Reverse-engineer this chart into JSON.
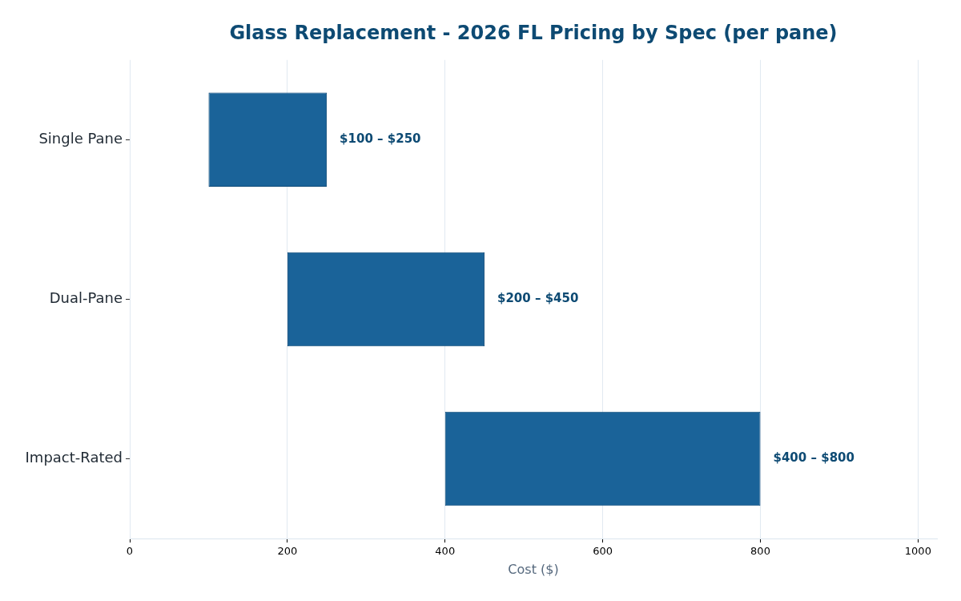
{
  "chart_data": {
    "type": "bar",
    "orientation": "horizontal",
    "title": "Glass Replacement - 2026 FL Pricing by Spec (per pane)",
    "xlabel": "Cost ($)",
    "categories": [
      "Single Pane",
      "Dual-Pane",
      "Impact-Rated"
    ],
    "base": [
      100,
      200,
      400
    ],
    "values": [
      150,
      250,
      400
    ],
    "color": "#1a6399",
    "annotations": [
      {
        "text": "$100 – $250",
        "x": 250,
        "y": "Single Pane"
      },
      {
        "text": "$200 – $450",
        "x": 450,
        "y": "Dual-Pane"
      },
      {
        "text": "$400 – $800",
        "x": 800,
        "y": "Impact-Rated"
      }
    ],
    "xlim": [
      0,
      1024
    ],
    "xticks": [
      0,
      200,
      400,
      600,
      800,
      1000
    ],
    "grid": "x"
  }
}
